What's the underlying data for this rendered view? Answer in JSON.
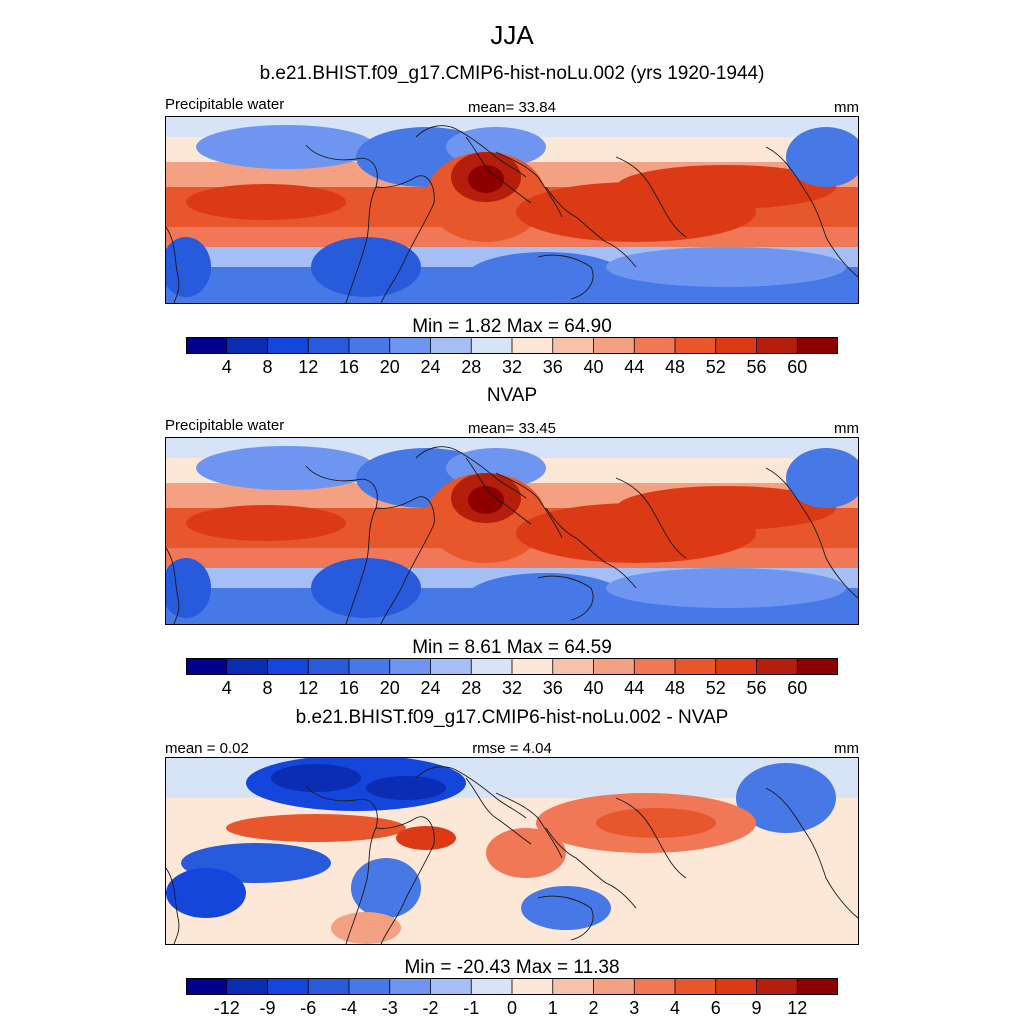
{
  "main_title": "JJA",
  "colors": {
    "pw": [
      "#00008c",
      "#0a2db4",
      "#1446dc",
      "#285adc",
      "#4678e6",
      "#6e96f0",
      "#a5bef5",
      "#d7e4f8",
      "#fde8d8",
      "#f8c2a8",
      "#f4a082",
      "#f07856",
      "#e8562c",
      "#dc3a14",
      "#b41e0a",
      "#8c0000"
    ],
    "diff": [
      "#00008c",
      "#0a2db4",
      "#1446dc",
      "#285adc",
      "#4678e6",
      "#6e96f0",
      "#a5bef5",
      "#d7e4f8",
      "#fde8d8",
      "#f8c2a8",
      "#f4a082",
      "#f07856",
      "#e8562c",
      "#dc3a14",
      "#b41e0a",
      "#8c0000"
    ]
  },
  "panels": [
    {
      "title": "b.e21.BHIST.f09_g17.CMIP6-hist-noLu.002 (yrs 1920-1944)",
      "left_label": "Precipitable water",
      "center_label": "mean=  33.84",
      "right_label": "mm",
      "minmax": "Min =   1.82 Max =  64.90",
      "ticks": [
        "4",
        "8",
        "12",
        "16",
        "20",
        "24",
        "28",
        "32",
        "36",
        "40",
        "44",
        "48",
        "52",
        "56",
        "60"
      ]
    },
    {
      "title": "NVAP",
      "left_label": "Precipitable water",
      "center_label": "mean=  33.45",
      "right_label": "mm",
      "minmax": "Min =   8.61 Max =  64.59",
      "ticks": [
        "4",
        "8",
        "12",
        "16",
        "20",
        "24",
        "28",
        "32",
        "36",
        "40",
        "44",
        "48",
        "52",
        "56",
        "60"
      ]
    },
    {
      "title": "b.e21.BHIST.f09_g17.CMIP6-hist-noLu.002 - NVAP",
      "left_label": "mean =   0.02",
      "center_label": "rmse =   4.04",
      "right_label": "mm",
      "minmax": "Min = -20.43 Max =  11.38",
      "ticks": [
        "-12",
        "-9",
        "-6",
        "-4",
        "-3",
        "-2",
        "-1",
        "0",
        "1",
        "2",
        "3",
        "4",
        "6",
        "9",
        "12"
      ]
    }
  ],
  "chart_data": [
    {
      "type": "heatmap",
      "title": "b.e21.BHIST.f09_g17.CMIP6-hist-noLu.002 (yrs 1920-1944)",
      "variable": "Precipitable water",
      "units": "mm",
      "mean": 33.84,
      "min": 1.82,
      "max": 64.9,
      "levels": [
        4,
        8,
        12,
        16,
        20,
        24,
        28,
        32,
        36,
        40,
        44,
        48,
        52,
        56,
        60
      ]
    },
    {
      "type": "heatmap",
      "title": "NVAP",
      "variable": "Precipitable water",
      "units": "mm",
      "mean": 33.45,
      "min": 8.61,
      "max": 64.59,
      "levels": [
        4,
        8,
        12,
        16,
        20,
        24,
        28,
        32,
        36,
        40,
        44,
        48,
        52,
        56,
        60
      ]
    },
    {
      "type": "heatmap",
      "title": "b.e21.BHIST.f09_g17.CMIP6-hist-noLu.002 - NVAP",
      "units": "mm",
      "mean": 0.02,
      "rmse": 4.04,
      "min": -20.43,
      "max": 11.38,
      "levels": [
        -12,
        -9,
        -6,
        -4,
        -3,
        -2,
        -1,
        0,
        1,
        2,
        3,
        4,
        6,
        9,
        12
      ]
    }
  ]
}
